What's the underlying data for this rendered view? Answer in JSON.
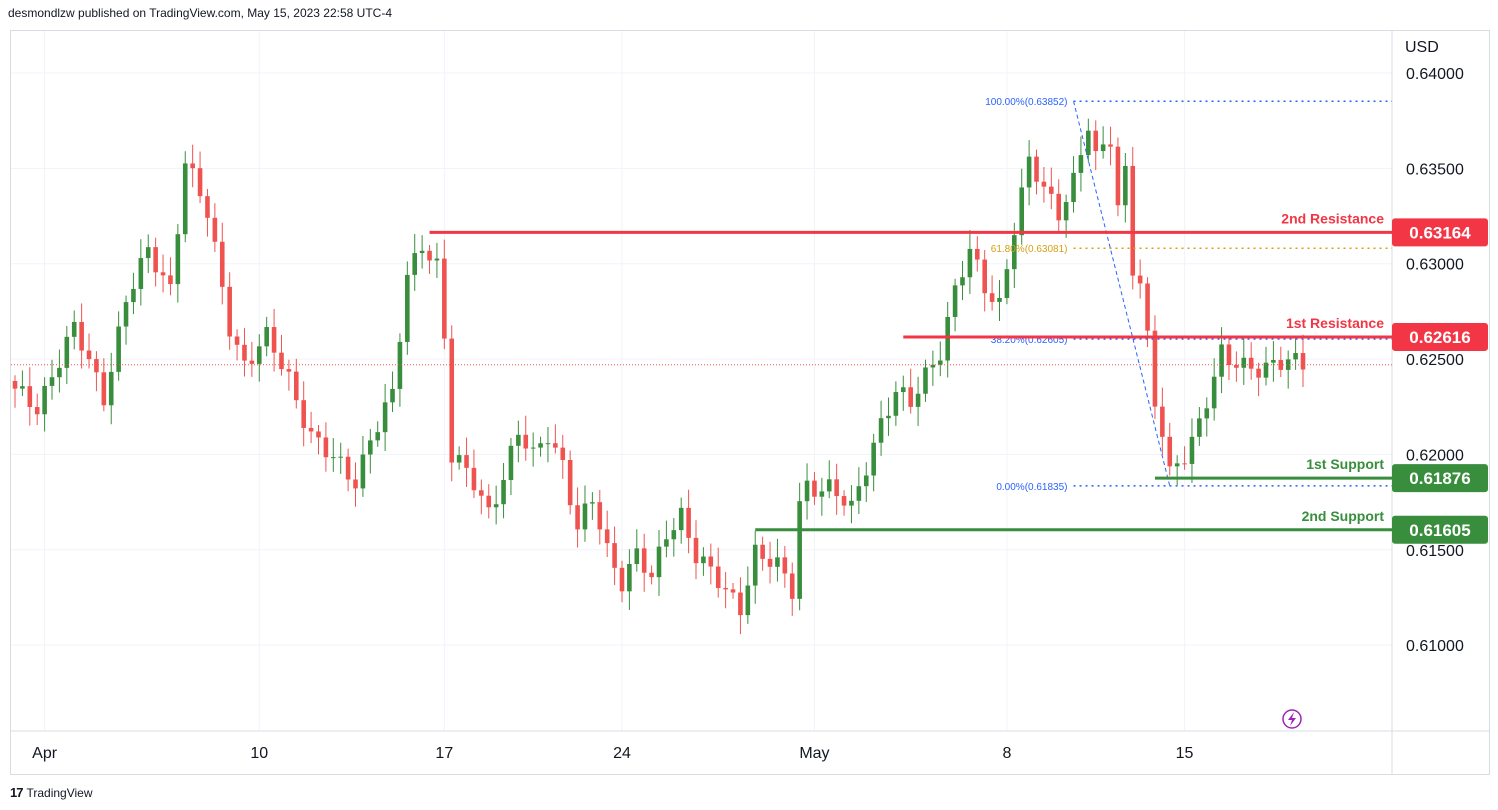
{
  "header": {
    "publisher_line": "desmondlzw published on TradingView.com, May 15, 2023 22:58 UTC-4"
  },
  "footer": {
    "brand": "TradingView",
    "logo_text": "17"
  },
  "colors": {
    "up": "#388e3c",
    "down": "#ef5350",
    "resistance": "#f23645",
    "support": "#388e3c",
    "fib": "#2962ff",
    "fib_gold": "#d4a017",
    "grid": "#f0f3fa",
    "text": "#131722"
  },
  "chart_data": {
    "type": "candlestick",
    "currency": "USD",
    "y_ticks": [
      "0.64000",
      "0.63500",
      "0.63000",
      "0.62500",
      "0.62000",
      "0.61500",
      "0.61000"
    ],
    "ylim": [
      0.6055,
      0.6422
    ],
    "x_labels": [
      {
        "label": "Apr",
        "index": 4
      },
      {
        "label": "10",
        "index": 33
      },
      {
        "label": "17",
        "index": 58
      },
      {
        "label": "24",
        "index": 82
      },
      {
        "label": "May",
        "index": 108
      },
      {
        "label": "8",
        "index": 134
      },
      {
        "label": "15",
        "index": 158
      }
    ],
    "bar_count": 175,
    "levels": [
      {
        "name": "2nd Resistance",
        "value": "0.63164",
        "price": 0.63164,
        "kind": "resistance",
        "from_index": 56
      },
      {
        "name": "1st Resistance",
        "value": "0.62616",
        "price": 0.62616,
        "kind": "resistance",
        "from_index": 120
      },
      {
        "name": "1st Support",
        "value": "0.61876",
        "price": 0.61876,
        "kind": "support",
        "from_index": 154
      },
      {
        "name": "2nd Support",
        "value": "0.61605",
        "price": 0.61605,
        "kind": "support",
        "from_index": 100
      }
    ],
    "fib_levels": [
      {
        "label": "100.00%(0.63852)",
        "price": 0.63852
      },
      {
        "label": "61.80%(0.63081)",
        "price": 0.63081
      },
      {
        "label": "38.20%(0.62605)",
        "price": 0.62605
      },
      {
        "label": "0.00%(0.61835)",
        "price": 0.61835
      }
    ],
    "fib_range_index": [
      143,
      156
    ],
    "last_price": 0.6247,
    "close_waypoints": [
      [
        0,
        0.6232
      ],
      [
        3,
        0.6225
      ],
      [
        5,
        0.6243
      ],
      [
        8,
        0.6265
      ],
      [
        10,
        0.6248
      ],
      [
        12,
        0.6231
      ],
      [
        15,
        0.6281
      ],
      [
        18,
        0.6305
      ],
      [
        21,
        0.6288
      ],
      [
        23,
        0.6355
      ],
      [
        26,
        0.6325
      ],
      [
        29,
        0.6268
      ],
      [
        31,
        0.6248
      ],
      [
        34,
        0.626
      ],
      [
        37,
        0.624
      ],
      [
        40,
        0.6211
      ],
      [
        43,
        0.6196
      ],
      [
        46,
        0.6186
      ],
      [
        48,
        0.621
      ],
      [
        51,
        0.623
      ],
      [
        53,
        0.6292
      ],
      [
        55,
        0.6312
      ],
      [
        57,
        0.63
      ],
      [
        58,
        0.6262
      ],
      [
        59,
        0.6198
      ],
      [
        62,
        0.6185
      ],
      [
        64,
        0.6171
      ],
      [
        66,
        0.6189
      ],
      [
        68,
        0.621
      ],
      [
        70,
        0.6198
      ],
      [
        72,
        0.6212
      ],
      [
        74,
        0.6196
      ],
      [
        76,
        0.616
      ],
      [
        78,
        0.6175
      ],
      [
        80,
        0.615
      ],
      [
        82,
        0.6135
      ],
      [
        84,
        0.6148
      ],
      [
        86,
        0.6133
      ],
      [
        88,
        0.6158
      ],
      [
        90,
        0.617
      ],
      [
        92,
        0.6148
      ],
      [
        94,
        0.6137
      ],
      [
        96,
        0.6127
      ],
      [
        98,
        0.6121
      ],
      [
        100,
        0.615
      ],
      [
        103,
        0.614
      ],
      [
        105,
        0.6128
      ],
      [
        106,
        0.6175
      ],
      [
        107,
        0.6185
      ],
      [
        110,
        0.6182
      ],
      [
        113,
        0.617
      ],
      [
        115,
        0.6195
      ],
      [
        117,
        0.6218
      ],
      [
        119,
        0.6232
      ],
      [
        121,
        0.6225
      ],
      [
        123,
        0.6242
      ],
      [
        125,
        0.6256
      ],
      [
        127,
        0.6286
      ],
      [
        129,
        0.6305
      ],
      [
        131,
        0.6287
      ],
      [
        133,
        0.628
      ],
      [
        135,
        0.632
      ],
      [
        137,
        0.6352
      ],
      [
        139,
        0.6338
      ],
      [
        141,
        0.6328
      ],
      [
        143,
        0.6345
      ],
      [
        145,
        0.6372
      ],
      [
        146,
        0.6353
      ],
      [
        148,
        0.6365
      ],
      [
        149,
        0.633
      ],
      [
        150,
        0.635
      ],
      [
        151,
        0.63
      ],
      [
        152,
        0.6292
      ],
      [
        153,
        0.626
      ],
      [
        154,
        0.6225
      ],
      [
        155,
        0.621
      ],
      [
        156,
        0.6188
      ],
      [
        158,
        0.6201
      ],
      [
        160,
        0.6218
      ],
      [
        162,
        0.624
      ],
      [
        163,
        0.6251
      ],
      [
        164,
        0.6247
      ]
    ]
  }
}
